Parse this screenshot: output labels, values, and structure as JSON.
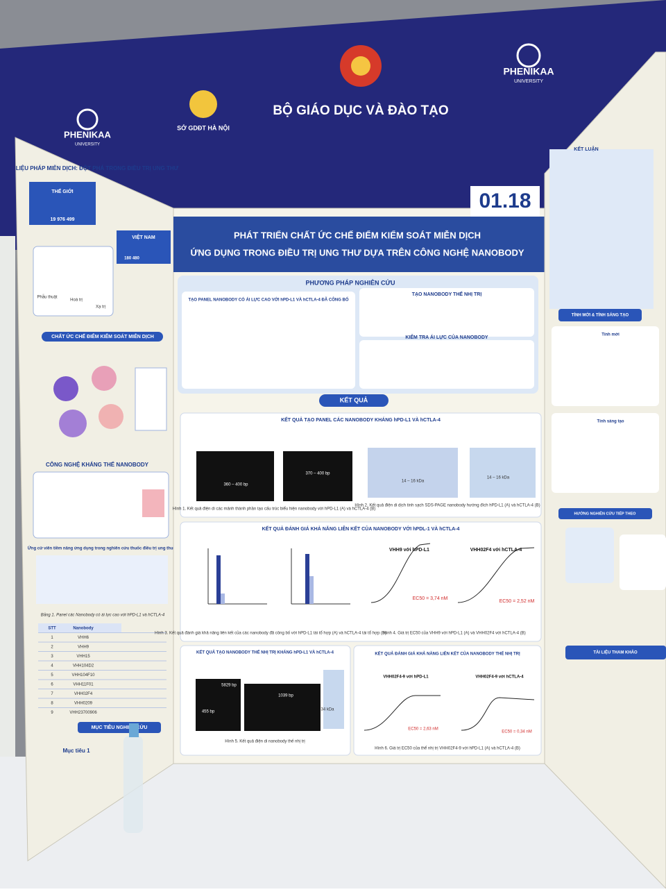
{
  "banner": {
    "ministry": "BỘ GIÁO DỤC VÀ ĐÀO TẠO",
    "department": "SỞ GDĐT HÀ NỘI",
    "university": "PHENIKAA",
    "university_sub": "UNIVERSITY"
  },
  "poster": {
    "number": "01.18",
    "title_lines": [
      "PHÁT TRIỂN CHẤT ỨC CHẾ ĐIỂM KIỂM SOÁT MIỄN DỊCH",
      "ỨNG DỤNG TRONG ĐIỀU TRỊ UNG THƯ DỰA TRÊN CÔNG NGHỆ NANOBODY"
    ],
    "methods": {
      "heading": "PHƯƠNG PHÁP NGHIÊN CỨU",
      "boxes": [
        "TẠO PANEL NANOBODY CÓ ÁI LỰC CAO VỚI hPD-L1 VÀ hCTLA-4 ĐÃ CÔNG BỐ",
        "TẠO NANOBODY THẾ NHỊ TRỊ",
        "KIỂM TRA ÁI LỰC CỦA NANOBODY"
      ]
    },
    "results": {
      "heading": "KẾT QUẢ",
      "panels": [
        {
          "title": "KẾT QUẢ TẠO PANEL CÁC NANOBODY KHÁNG hPD-L1 VÀ hCTLA-4",
          "captions": [
            "Hình 1. Kết quả điện di các mảnh thành phần tạo cấu trúc biểu hiện nanobody với hPD-L1 (A) và hCTLA-4 (B)",
            "Hình 2. Kết quả điện di dịch tinh sạch SDS-PAGE nanobody hướng đích hPD-L1 (A) và hCTLA-4 (B)"
          ],
          "labels": [
            "360 – 400 bp",
            "370 – 400 bp",
            "14 – 16 kDa",
            "14 – 16 kDa"
          ]
        },
        {
          "title": "KẾT QUẢ ĐÁNH GIÁ KHẢ NĂNG LIÊN KẾT CỦA NANOBODY VỚI hPDL-1 VÀ hCTLA-4",
          "captions": [
            "Hình 3. Kết quả đánh giá khả năng liên kết của các nanobody đã công bố với hPD-L1 tái tổ hợp (A) và hCTLA-4 tái tổ hợp (B)",
            "Hình 4. Giá trị EC50 của VHH9 với hPD-L1 (A) và VHH02F4 với hCTLA-4 (B)"
          ],
          "curves": [
            "VHH9 với hPD-L1",
            "VHH02F4 với hCTLA-4"
          ],
          "ec50": [
            "EC50 = 3,74 nM",
            "EC50 = 2,52 nM"
          ]
        },
        {
          "title": "KẾT QUẢ TẠO NANOBODY THẾ NHỊ TRỊ KHÁNG hPD-L1 VÀ hCTLA-4",
          "captions": [
            "Hình 5. Kết quả điện di nanobody thế nhị trị"
          ],
          "labels": [
            "5829 bp",
            "455 bp",
            "1039 bp",
            "34 kDa"
          ]
        },
        {
          "title": "KẾT QUẢ ĐÁNH GIÁ KHẢ NĂNG LIÊN KẾT CỦA NANOBODY THẾ NHỊ TRỊ",
          "captions": [
            "Hình 6. Giá trị EC50 của thể nhị trị VHH02F4-9 với hPD-L1 (A) và hCTLA-4 (B)"
          ],
          "curves": [
            "VHH02F4-9 với hPD-L1",
            "VHH02F4-9 với hCTLA-4"
          ],
          "ec50": [
            "EC50 = 2,63 nM",
            "EC50 = 0,34 nM"
          ]
        }
      ]
    }
  },
  "left_panel": {
    "headings": [
      "LIỆU PHÁP MIỄN DỊCH: ĐỘT PHÁ TRONG ĐIỀU TRỊ UNG THƯ",
      "CHẤT ỨC CHẾ ĐIỂM KIỂM SOÁT MIỄN DỊCH",
      "CÔNG NGHỆ KHÁNG THỂ NANOBODY",
      "Ứng cử viên tiềm năng ứng dụng trong nghiên cứu thuốc điều trị ung thư",
      "MỤC TIÊU NGHIÊN CỨU"
    ],
    "stats": [
      {
        "label": "THẾ GIỚI",
        "value": "19 976 499"
      },
      {
        "label": "VIỆT NAM",
        "value": "180 480"
      }
    ],
    "treatments": [
      "Phẫu thuật",
      "Hoá trị",
      "Xạ trị"
    ],
    "table": {
      "caption": "Bảng 1. Panel các Nanobody có ái lực cao với hPD-L1 và hCTLA-4",
      "header": [
        "STT",
        "Nanobody"
      ],
      "rows": [
        [
          "1",
          "VHH6"
        ],
        [
          "2",
          "VHH9"
        ],
        [
          "3",
          "VHH15"
        ],
        [
          "4",
          "VHH104D2"
        ],
        [
          "5",
          "VHH104F10"
        ],
        [
          "6",
          "VHH11F01"
        ],
        [
          "7",
          "VHH02F4"
        ],
        [
          "8",
          "VHH0209"
        ],
        [
          "9",
          "VHH23700906"
        ]
      ]
    },
    "goal": "Mục tiêu 1"
  },
  "right_panel": {
    "headings": [
      "KẾT LUẬN",
      "TÍNH MỚI & TÍNH SÁNG TẠO",
      "Tính mới",
      "Tính sáng tạo",
      "HƯỚNG NGHIÊN CỨU TIẾP THEO",
      "TÀI LIỆU THAM KHẢO"
    ]
  }
}
